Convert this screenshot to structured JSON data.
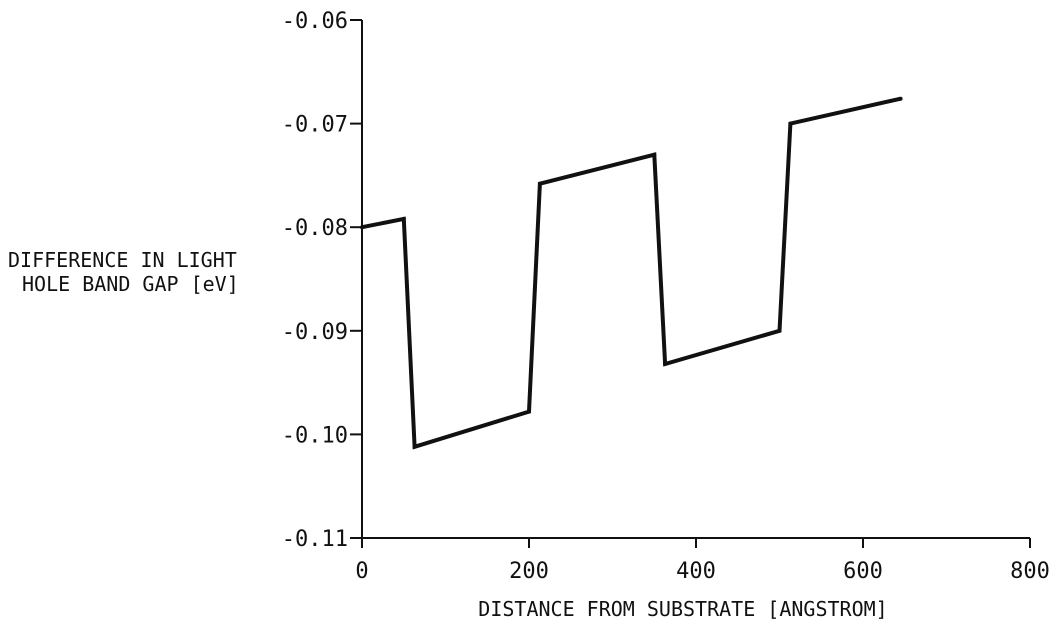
{
  "chart_data": {
    "type": "line",
    "title": "",
    "xlabel": "DISTANCE FROM SUBSTRATE [ANGSTROM]",
    "ylabel_lines": [
      "DIFFERENCE IN LIGHT",
      "HOLE BAND GAP  [eV]"
    ],
    "xlim": [
      0,
      800
    ],
    "ylim": [
      -0.11,
      -0.06
    ],
    "x_ticks": [
      0,
      200,
      400,
      600,
      800
    ],
    "x_tick_labels": [
      "0",
      "200",
      "400",
      "600",
      "800"
    ],
    "y_ticks": [
      -0.06,
      -0.07,
      -0.08,
      -0.09,
      -0.1,
      -0.11
    ],
    "y_tick_labels": [
      "-0.06",
      "-0.07",
      "-0.08",
      "-0.09",
      "-0.10",
      "-0.11"
    ],
    "grid": false,
    "legend": "none",
    "series": [
      {
        "points": [
          [
            0,
            -0.08
          ],
          [
            50,
            -0.0792
          ],
          [
            63,
            -0.1012
          ],
          [
            200,
            -0.0978
          ],
          [
            213,
            -0.0758
          ],
          [
            350,
            -0.073
          ],
          [
            363,
            -0.0932
          ],
          [
            500,
            -0.09
          ],
          [
            513,
            -0.07
          ],
          [
            645,
            -0.0676
          ]
        ]
      }
    ]
  }
}
